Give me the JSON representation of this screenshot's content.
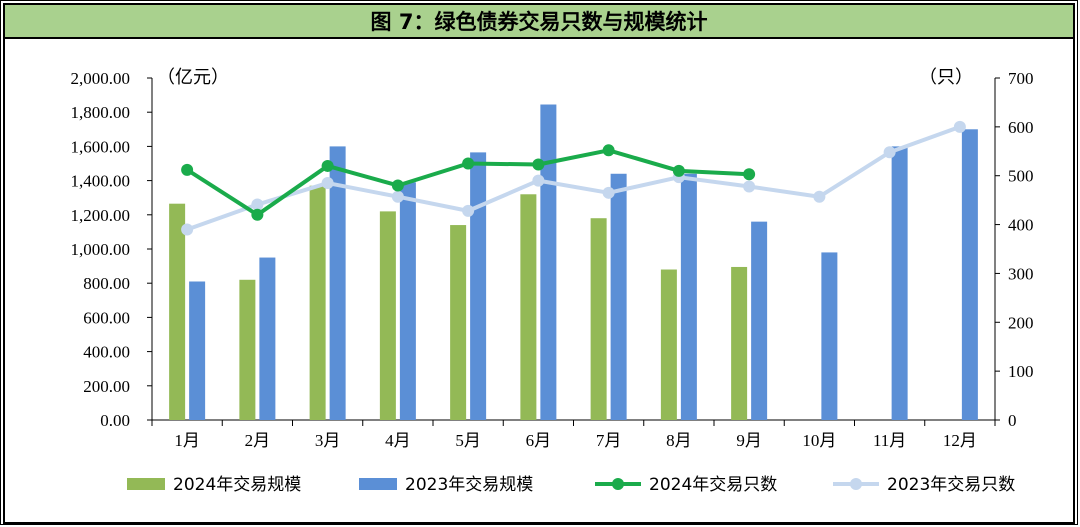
{
  "title": "图 7：绿色债券交易只数与规模统计",
  "chart_data": {
    "type": "bar+line",
    "title": "图 7：绿色债券交易只数与规模统计",
    "categories": [
      "1月",
      "2月",
      "3月",
      "4月",
      "5月",
      "6月",
      "7月",
      "8月",
      "9月",
      "10月",
      "11月",
      "12月"
    ],
    "left_axis": {
      "unit": "（亿元）",
      "ylim": [
        0,
        2000
      ],
      "ticks": [
        "0.00",
        "200.00",
        "400.00",
        "600.00",
        "800.00",
        "1,000.00",
        "1,200.00",
        "1,400.00",
        "1,600.00",
        "1,800.00",
        "2,000.00"
      ]
    },
    "right_axis": {
      "unit": "（只）",
      "ylim": [
        0,
        700
      ],
      "ticks": [
        "0",
        "100",
        "200",
        "300",
        "400",
        "500",
        "600",
        "700"
      ]
    },
    "series": [
      {
        "name": "2024年交易规模",
        "kind": "bar",
        "axis": "left",
        "color": "#93b956",
        "values": [
          1265,
          820,
          1370,
          1220,
          1140,
          1320,
          1180,
          880,
          895,
          null,
          null,
          null
        ]
      },
      {
        "name": "2023年交易规模",
        "kind": "bar",
        "axis": "left",
        "color": "#5b8fd6",
        "values": [
          810,
          950,
          1600,
          1390,
          1565,
          1845,
          1440,
          1440,
          1160,
          980,
          1600,
          1700
        ]
      },
      {
        "name": "2024年交易只数",
        "kind": "line",
        "axis": "right",
        "color": "#1aab4b",
        "values": [
          512,
          420,
          520,
          480,
          525,
          523,
          552,
          510,
          503,
          null,
          null,
          null
        ]
      },
      {
        "name": "2023年交易只数",
        "kind": "line",
        "axis": "right",
        "color": "#c5d7ee",
        "values": [
          390,
          441,
          485,
          457,
          428,
          490,
          465,
          497,
          478,
          457,
          548,
          600
        ]
      }
    ],
    "legend_position": "bottom"
  }
}
